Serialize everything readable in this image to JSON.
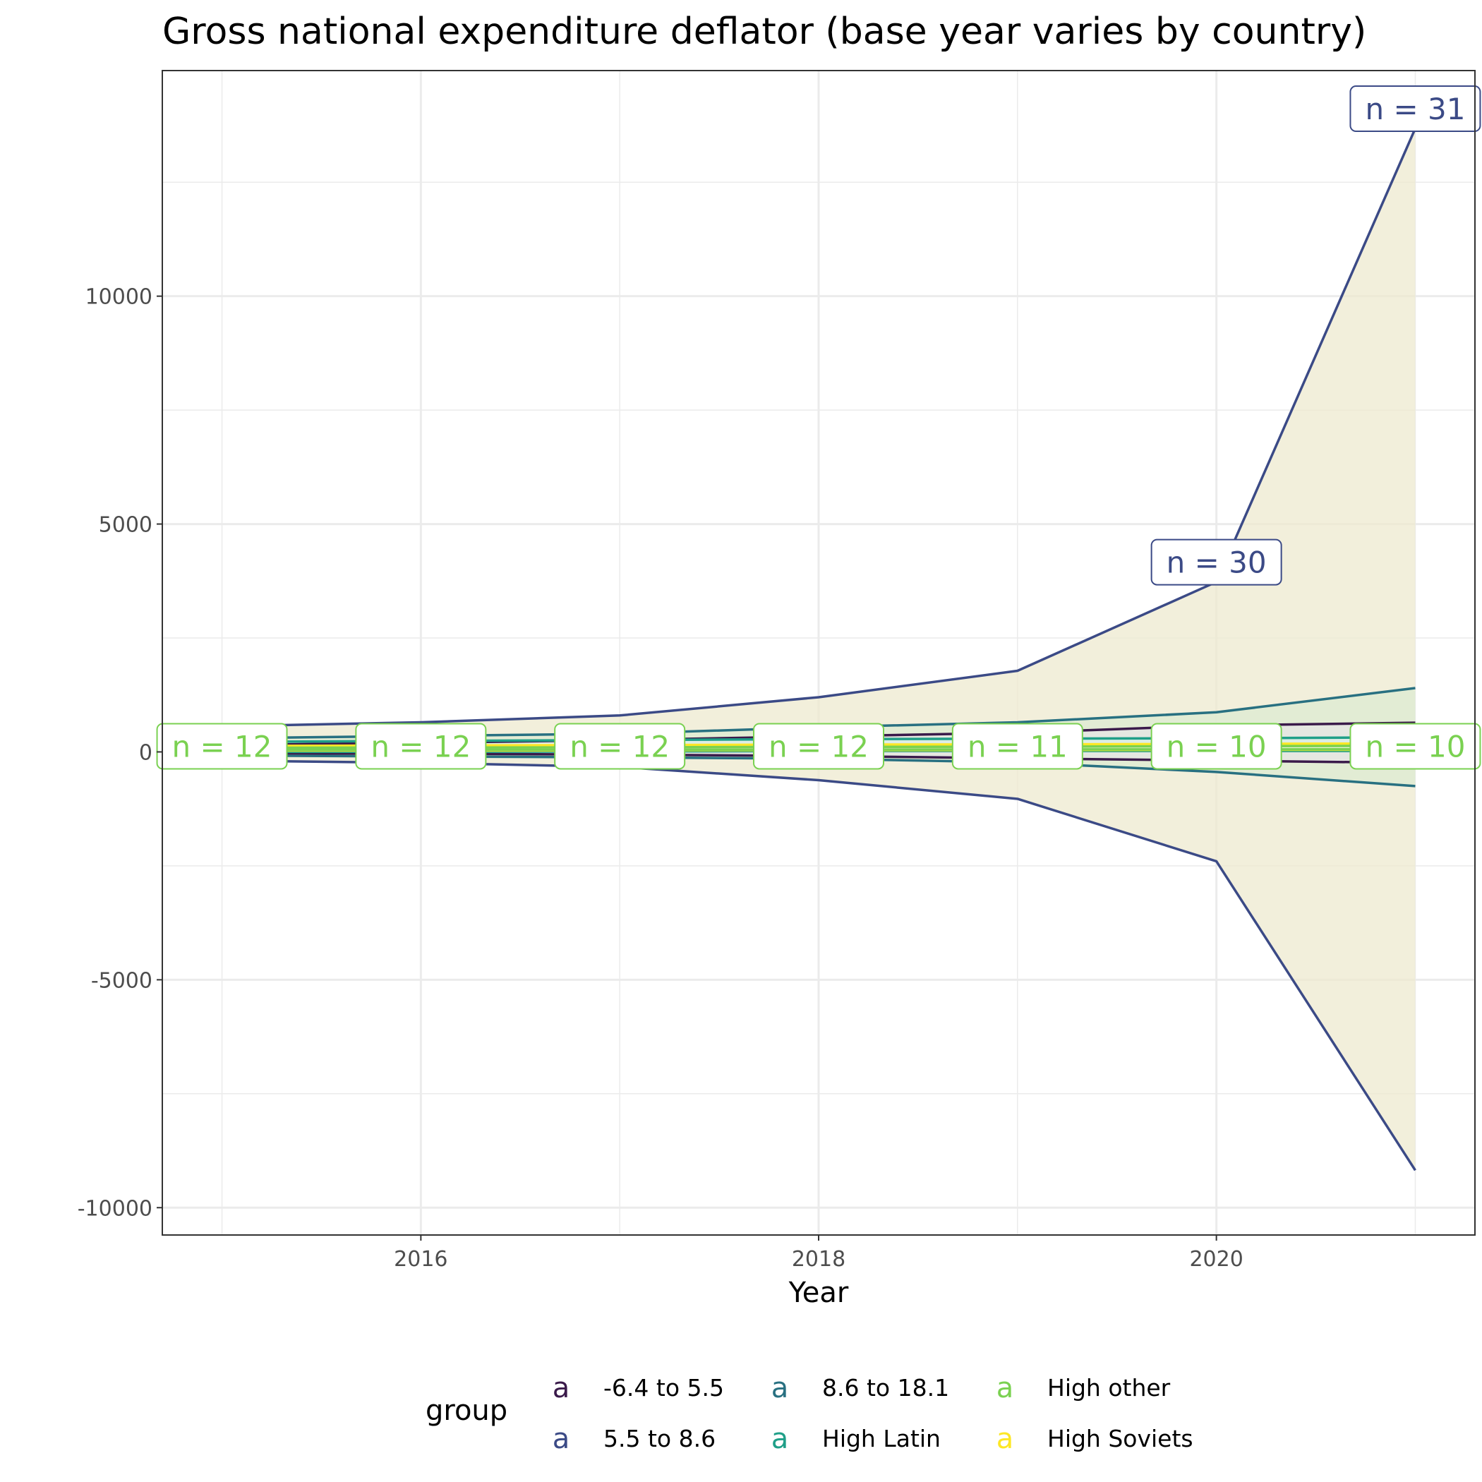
{
  "chart_data": {
    "type": "area",
    "title": "Gross national expenditure deflator (base year varies by country)",
    "xlabel": "Year",
    "ylabel": "",
    "xlim": [
      2014.7,
      2021.3
    ],
    "ylim": [
      -10600,
      14950
    ],
    "x_ticks": [
      2016,
      2018,
      2020
    ],
    "y_ticks": [
      -10000,
      -5000,
      0,
      5000,
      10000
    ],
    "x": [
      2015,
      2016,
      2017,
      2018,
      2019,
      2020,
      2021
    ],
    "grid": true,
    "legend": {
      "title": "group",
      "position": "bottom",
      "key_glyph": "a"
    },
    "series": [
      {
        "name": "5.5 to 8.6",
        "color": "#3b4a86",
        "fill": "#eee9cf",
        "upper": [
          560,
          650,
          800,
          1200,
          1780,
          3730,
          13680
        ],
        "lower": [
          -190,
          -240,
          -330,
          -620,
          -1030,
          -2400,
          -9180
        ],
        "labels": [
          {
            "x": 2021,
            "text": "n = 31"
          },
          {
            "x": 2020,
            "text": "n = 30"
          }
        ]
      },
      {
        "name": "8.6 to 18.1",
        "color": "#287081",
        "fill": "#dcebd2",
        "upper": [
          300,
          350,
          400,
          540,
          650,
          870,
          1400
        ],
        "lower": [
          -80,
          -100,
          -120,
          -150,
          -230,
          -440,
          -750
        ],
        "labels": []
      },
      {
        "name": "-6.4 to 5.5",
        "color": "#3a1a4a",
        "fill": "#e6e6e6",
        "upper": [
          150,
          200,
          260,
          340,
          420,
          580,
          640
        ],
        "lower": [
          -30,
          -40,
          -60,
          -90,
          -140,
          -190,
          -240
        ],
        "labels": []
      },
      {
        "name": "High Latin",
        "color": "#1f9f88",
        "fill": "#d8efe6",
        "upper": [
          220,
          240,
          260,
          280,
          290,
          300,
          320
        ],
        "lower": [
          0,
          5,
          10,
          20,
          20,
          20,
          20
        ],
        "labels": []
      },
      {
        "name": "High Soviets",
        "color": "#fde725",
        "fill": "#fdf6b0",
        "upper": [
          130,
          140,
          150,
          160,
          165,
          175,
          185
        ],
        "lower": [
          30,
          30,
          35,
          40,
          40,
          45,
          45
        ],
        "labels": []
      },
      {
        "name": "High other",
        "color": "#7ad151",
        "fill": "#e4f4da",
        "upper": [
          90,
          95,
          100,
          110,
          115,
          125,
          135
        ],
        "lower": [
          40,
          45,
          45,
          50,
          55,
          55,
          60
        ],
        "labels": [
          {
            "x": 2015,
            "text": "n = 12"
          },
          {
            "x": 2016,
            "text": "n = 12"
          },
          {
            "x": 2017,
            "text": "n = 12"
          },
          {
            "x": 2018,
            "text": "n = 12"
          },
          {
            "x": 2019,
            "text": "n = 11"
          },
          {
            "x": 2020,
            "text": "n = 10"
          },
          {
            "x": 2021,
            "text": "n = 10"
          }
        ]
      }
    ]
  }
}
